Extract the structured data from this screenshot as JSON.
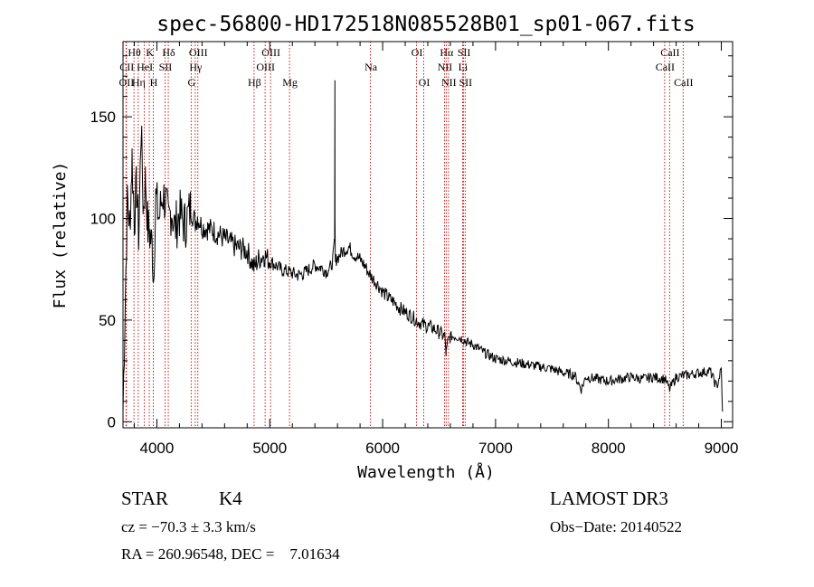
{
  "chart_data": {
    "type": "line",
    "title": "spec-56800-HD172518N085528B01_sp01-067.fits",
    "xlabel": "Wavelength (Å)",
    "ylabel": "Flux (relative)",
    "xlim": [
      3700,
      9100
    ],
    "ylim": [
      -3,
      187
    ],
    "xticks": [
      4000,
      5000,
      6000,
      7000,
      8000,
      9000
    ],
    "yticks": [
      0,
      50,
      100,
      150
    ],
    "grid": false,
    "series": [
      {
        "name": "spectrum",
        "x": [
          3700,
          3720,
          3740,
          3760,
          3780,
          3800,
          3820,
          3840,
          3860,
          3880,
          3900,
          3920,
          3940,
          3960,
          3970,
          3990,
          4020,
          4050,
          4080,
          4101,
          4130,
          4160,
          4200,
          4250,
          4300,
          4340,
          4360,
          4400,
          4450,
          4500,
          4550,
          4600,
          4650,
          4700,
          4750,
          4800,
          4861,
          4900,
          4950,
          5000,
          5050,
          5100,
          5150,
          5200,
          5250,
          5300,
          5350,
          5400,
          5450,
          5500,
          5540,
          5560,
          5575,
          5577,
          5578,
          5580,
          5582,
          5590,
          5620,
          5650,
          5700,
          5750,
          5800,
          5850,
          5890,
          5950,
          6000,
          6050,
          6100,
          6150,
          6200,
          6250,
          6300,
          6350,
          6400,
          6450,
          6500,
          6550,
          6563,
          6580,
          6600,
          6650,
          6700,
          6750,
          6800,
          6850,
          6900,
          7000,
          7100,
          7200,
          7300,
          7400,
          7500,
          7600,
          7700,
          7760,
          7800,
          7900,
          8000,
          8100,
          8200,
          8300,
          8400,
          8500,
          8542,
          8600,
          8700,
          8800,
          8900,
          8960,
          9000,
          9010
        ],
        "values": [
          5,
          60,
          112,
          95,
          130,
          100,
          115,
          90,
          145,
          105,
          120,
          95,
          92,
          85,
          70,
          110,
          100,
          112,
          108,
          98,
          105,
          95,
          102,
          97,
          105,
          98,
          101,
          96,
          95,
          94,
          92,
          90,
          88,
          86,
          85,
          84,
          76,
          80,
          82,
          79,
          77,
          75,
          74,
          73,
          72,
          73,
          75,
          77,
          76,
          74,
          76,
          80,
          90,
          168,
          100,
          82,
          78,
          80,
          82,
          84,
          86,
          82,
          80,
          76,
          72,
          68,
          64,
          61,
          59,
          56,
          54,
          52,
          50,
          48,
          47,
          46,
          44,
          42,
          33,
          40,
          42,
          42,
          41,
          39,
          38,
          36,
          34,
          31,
          30,
          29,
          28,
          27,
          26,
          24,
          23,
          16,
          22,
          21,
          20,
          21,
          22,
          21,
          22,
          21,
          16,
          22,
          23,
          24,
          25,
          17,
          26,
          5
        ]
      }
    ],
    "lines": [
      {
        "name": "CII",
        "x": 3730,
        "row": 2
      },
      {
        "name": "OII",
        "x": 3727,
        "row": 3
      },
      {
        "name": "Hθ",
        "x": 3797,
        "row": 1
      },
      {
        "name": "Hη",
        "x": 3835,
        "row": 3
      },
      {
        "name": "HeI",
        "x": 3889,
        "row": 2
      },
      {
        "name": "K",
        "x": 3933,
        "row": 1
      },
      {
        "name": "H",
        "x": 3968,
        "row": 3
      },
      {
        "name": "SII",
        "x": 4072,
        "row": 2
      },
      {
        "name": "Hδ",
        "x": 4101,
        "row": 1
      },
      {
        "name": "G",
        "x": 4304,
        "row": 3
      },
      {
        "name": "Hγ",
        "x": 4340,
        "row": 2
      },
      {
        "name": "OIII",
        "x": 4363,
        "row": 1
      },
      {
        "name": "Hβ",
        "x": 4861,
        "row": 3
      },
      {
        "name": "OIII",
        "x": 4959,
        "row": 2
      },
      {
        "name": "OIII",
        "x": 5007,
        "row": 1
      },
      {
        "name": "Mg",
        "x": 5175,
        "row": 3
      },
      {
        "name": "Na",
        "x": 5892,
        "row": 2
      },
      {
        "name": "OI",
        "x": 6300,
        "row": 1
      },
      {
        "name": "OI",
        "x": 6364,
        "row": 3
      },
      {
        "name": "NII",
        "x": 6548,
        "row": 2
      },
      {
        "name": "Hα",
        "x": 6563,
        "row": 1
      },
      {
        "name": "NII",
        "x": 6583,
        "row": 3
      },
      {
        "name": "Li",
        "x": 6708,
        "row": 2
      },
      {
        "name": "SII",
        "x": 6717,
        "row": 1
      },
      {
        "name": "SII",
        "x": 6731,
        "row": 3
      },
      {
        "name": "CaII",
        "x": 8498,
        "row": 2
      },
      {
        "name": "CaII",
        "x": 8542,
        "row": 1
      },
      {
        "name": "CaII",
        "x": 8662,
        "row": 3
      }
    ]
  },
  "info": {
    "class": "STAR",
    "subclass": "K4",
    "survey": "LAMOST DR3",
    "cz": "cz = −70.3 ± 3.3 km/s",
    "obsdate": "Obs−Date: 20140522",
    "radec": "RA = 260.96548, DEC =    7.01634"
  }
}
